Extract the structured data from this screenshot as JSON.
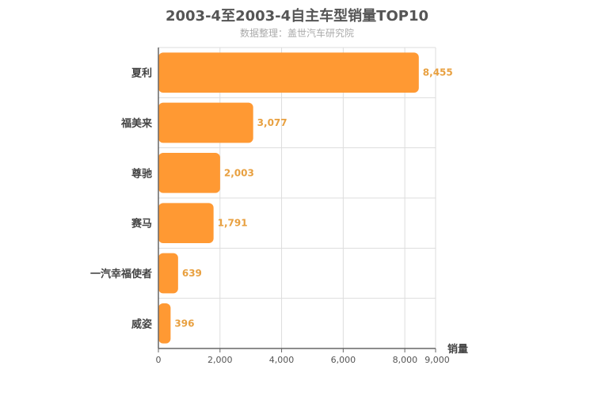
{
  "chart_data": {
    "type": "bar",
    "orientation": "horizontal",
    "title": "2003-4至2003-4自主车型销量TOP10",
    "subtitle": "数据整理：盖世汽车研究院",
    "categories": [
      "夏利",
      "福美来",
      "尊驰",
      "赛马",
      "一汽幸福使者",
      "威姿"
    ],
    "values": [
      8455,
      3077,
      2003,
      1791,
      639,
      396
    ],
    "value_labels": [
      "8,455",
      "3,077",
      "2,003",
      "1,791",
      "639",
      "396"
    ],
    "xlabel": "销量",
    "xlim": [
      0,
      9000
    ],
    "x_ticks": [
      0,
      2000,
      4000,
      6000,
      8000,
      9000
    ],
    "x_tick_labels": [
      "0",
      "2,000",
      "4,000",
      "6,000",
      "8,000",
      "9,000"
    ],
    "grid": true,
    "legend": "none",
    "colors": {
      "bar": "#ff9933",
      "value_label": "#e8a040",
      "axis": "#666666",
      "grid": "#dddddd",
      "text": "#444444"
    }
  }
}
